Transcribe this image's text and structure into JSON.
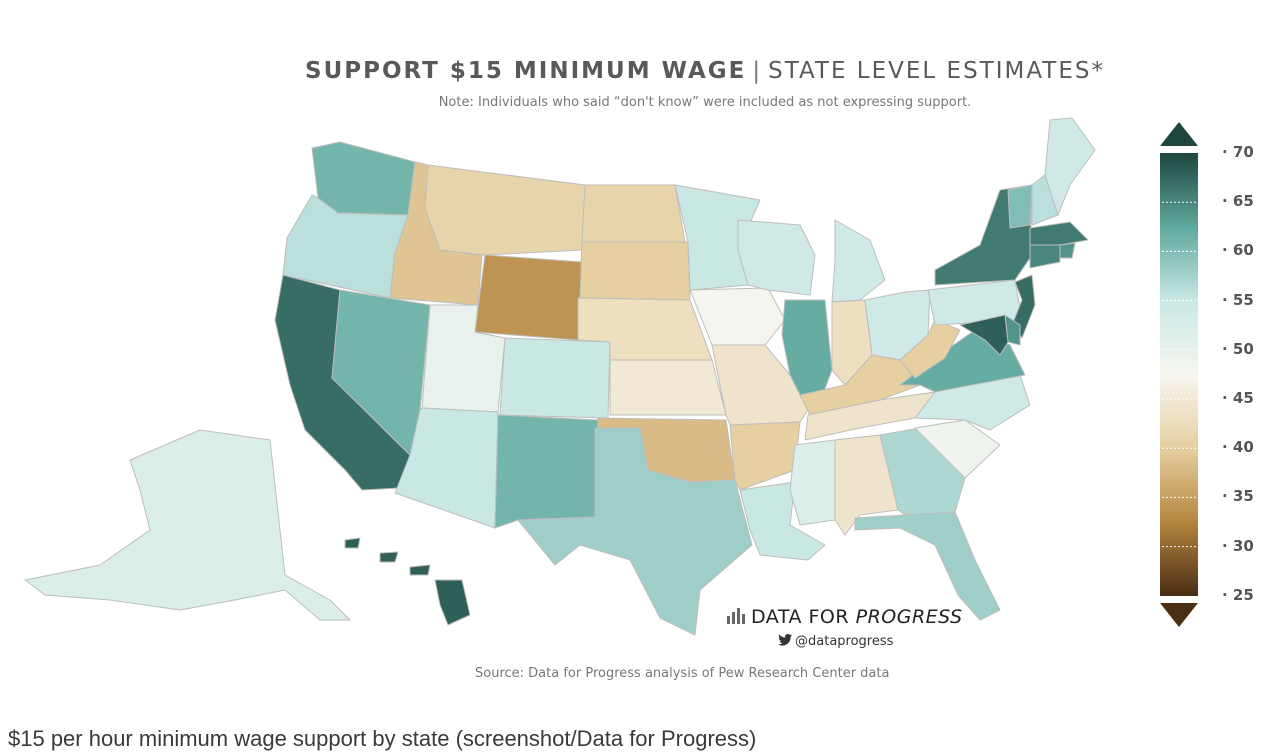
{
  "title": {
    "bold": "SUPPORT $15 MINIMUM WAGE",
    "separator": "|",
    "thin": "STATE LEVEL ESTIMATES*"
  },
  "note": "Note: Individuals who said “don't know” were included as not expressing support.",
  "legend": {
    "ticks": [
      "70",
      "65",
      "60",
      "55",
      "50",
      "45",
      "40",
      "35",
      "30",
      "25"
    ],
    "scale_min": 25,
    "scale_max": 70,
    "colors": [
      "#4a2e14",
      "#b5853f",
      "#e6cfa0",
      "#f7f6f0",
      "#c9e8e4",
      "#5fa89d",
      "#1d463e"
    ]
  },
  "states": [
    {
      "id": "WA",
      "level": 61
    },
    {
      "id": "OR",
      "level": 56
    },
    {
      "id": "CA",
      "level": 67
    },
    {
      "id": "NV",
      "level": 61
    },
    {
      "id": "ID",
      "level": 39
    },
    {
      "id": "MT",
      "level": 41
    },
    {
      "id": "WY",
      "level": 34
    },
    {
      "id": "UT",
      "level": 50
    },
    {
      "id": "AZ",
      "level": 55
    },
    {
      "id": "CO",
      "level": 55
    },
    {
      "id": "NM",
      "level": 61
    },
    {
      "id": "ND",
      "level": 41
    },
    {
      "id": "SD",
      "level": 40
    },
    {
      "id": "NE",
      "level": 43
    },
    {
      "id": "KS",
      "level": 45
    },
    {
      "id": "OK",
      "level": 38
    },
    {
      "id": "TX",
      "level": 58
    },
    {
      "id": "MN",
      "level": 55
    },
    {
      "id": "IA",
      "level": 48
    },
    {
      "id": "MO",
      "level": 44
    },
    {
      "id": "AR",
      "level": 40
    },
    {
      "id": "LA",
      "level": 55
    },
    {
      "id": "WI",
      "level": 54
    },
    {
      "id": "IL",
      "level": 62
    },
    {
      "id": "MI",
      "level": 54
    },
    {
      "id": "IN",
      "level": 43
    },
    {
      "id": "OH",
      "level": 54
    },
    {
      "id": "KY",
      "level": 40
    },
    {
      "id": "TN",
      "level": 44
    },
    {
      "id": "MS",
      "level": 52
    },
    {
      "id": "AL",
      "level": 44
    },
    {
      "id": "GA",
      "level": 57
    },
    {
      "id": "FL",
      "level": 58
    },
    {
      "id": "SC",
      "level": 49
    },
    {
      "id": "NC",
      "level": 54
    },
    {
      "id": "VA",
      "level": 62
    },
    {
      "id": "WV",
      "level": 40
    },
    {
      "id": "PA",
      "level": 54
    },
    {
      "id": "NY",
      "level": 66
    },
    {
      "id": "VT",
      "level": 60
    },
    {
      "id": "NH",
      "level": 56
    },
    {
      "id": "ME",
      "level": 54
    },
    {
      "id": "MA",
      "level": 66
    },
    {
      "id": "RI",
      "level": 64
    },
    {
      "id": "CT",
      "level": 65
    },
    {
      "id": "NJ",
      "level": 67
    },
    {
      "id": "DE",
      "level": 64
    },
    {
      "id": "MD",
      "level": 68
    },
    {
      "id": "AK",
      "level": 52
    },
    {
      "id": "HI",
      "level": 68
    }
  ],
  "brand": {
    "name_regular": "DATA FOR ",
    "name_italic": "PROGRESS",
    "handle": "@dataprogress"
  },
  "source": "Source: Data for Progress analysis of Pew Research Center data",
  "caption": "$15 per hour minimum wage support by state (screenshot/Data for Progress)"
}
